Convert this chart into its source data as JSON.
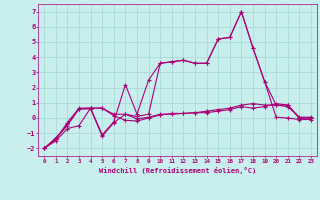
{
  "xlabel": "Windchill (Refroidissement éolien,°C)",
  "bg_color": "#c8eeee",
  "grid_color": "#a8dada",
  "line_color": "#aa0077",
  "xlim": [
    -0.5,
    23.5
  ],
  "ylim": [
    -2.5,
    7.5
  ],
  "xticks": [
    0,
    1,
    2,
    3,
    4,
    5,
    6,
    7,
    8,
    9,
    10,
    11,
    12,
    13,
    14,
    15,
    16,
    17,
    18,
    19,
    20,
    21,
    22,
    23
  ],
  "yticks": [
    -2,
    -1,
    0,
    1,
    2,
    3,
    4,
    5,
    6,
    7
  ],
  "line1_x": [
    0,
    1,
    2,
    3,
    4,
    5,
    6,
    7,
    8,
    9,
    10,
    11,
    12,
    13,
    14,
    15,
    16,
    17,
    18,
    19,
    20,
    21,
    22,
    23
  ],
  "line1_y": [
    -2.0,
    -1.5,
    -0.7,
    -0.5,
    0.65,
    0.65,
    0.15,
    -0.15,
    -0.2,
    0.0,
    0.2,
    0.3,
    0.3,
    0.35,
    0.45,
    0.55,
    0.65,
    0.85,
    0.95,
    0.85,
    0.85,
    0.75,
    0.05,
    0.05
  ],
  "line2_x": [
    0,
    1,
    2,
    3,
    4,
    5,
    6,
    7,
    8,
    9,
    10,
    11,
    12,
    13,
    14,
    15,
    16,
    17,
    18,
    19,
    20,
    21,
    22,
    23
  ],
  "line2_y": [
    -2.0,
    -1.3,
    -0.5,
    0.6,
    0.6,
    -1.2,
    -0.3,
    0.25,
    0.1,
    0.25,
    3.6,
    3.7,
    3.8,
    3.6,
    3.6,
    5.2,
    5.3,
    7.0,
    4.6,
    2.4,
    0.05,
    0.0,
    -0.1,
    -0.1
  ],
  "line3_x": [
    0,
    1,
    2,
    3,
    4,
    5,
    6,
    7,
    8,
    9,
    10,
    11,
    12,
    13,
    14,
    15,
    16,
    17,
    18,
    19,
    20,
    21,
    22,
    23
  ],
  "line3_y": [
    -2.0,
    -1.4,
    -0.4,
    0.6,
    0.65,
    0.65,
    0.25,
    0.25,
    -0.05,
    0.05,
    0.25,
    0.25,
    0.3,
    0.35,
    0.35,
    0.45,
    0.55,
    0.75,
    0.65,
    0.75,
    0.95,
    0.85,
    0.0,
    0.0
  ],
  "line4_x": [
    0,
    1,
    2,
    3,
    4,
    5,
    6,
    7,
    8,
    9,
    10,
    11,
    12,
    13,
    14,
    15,
    16,
    17,
    18,
    19,
    20,
    21,
    22,
    23
  ],
  "line4_y": [
    -2.0,
    -1.4,
    -0.3,
    0.65,
    0.65,
    -1.1,
    -0.25,
    2.2,
    0.25,
    2.5,
    3.6,
    3.7,
    3.8,
    3.6,
    3.6,
    5.2,
    5.3,
    7.0,
    4.6,
    2.4,
    0.85,
    0.85,
    0.0,
    0.0
  ]
}
